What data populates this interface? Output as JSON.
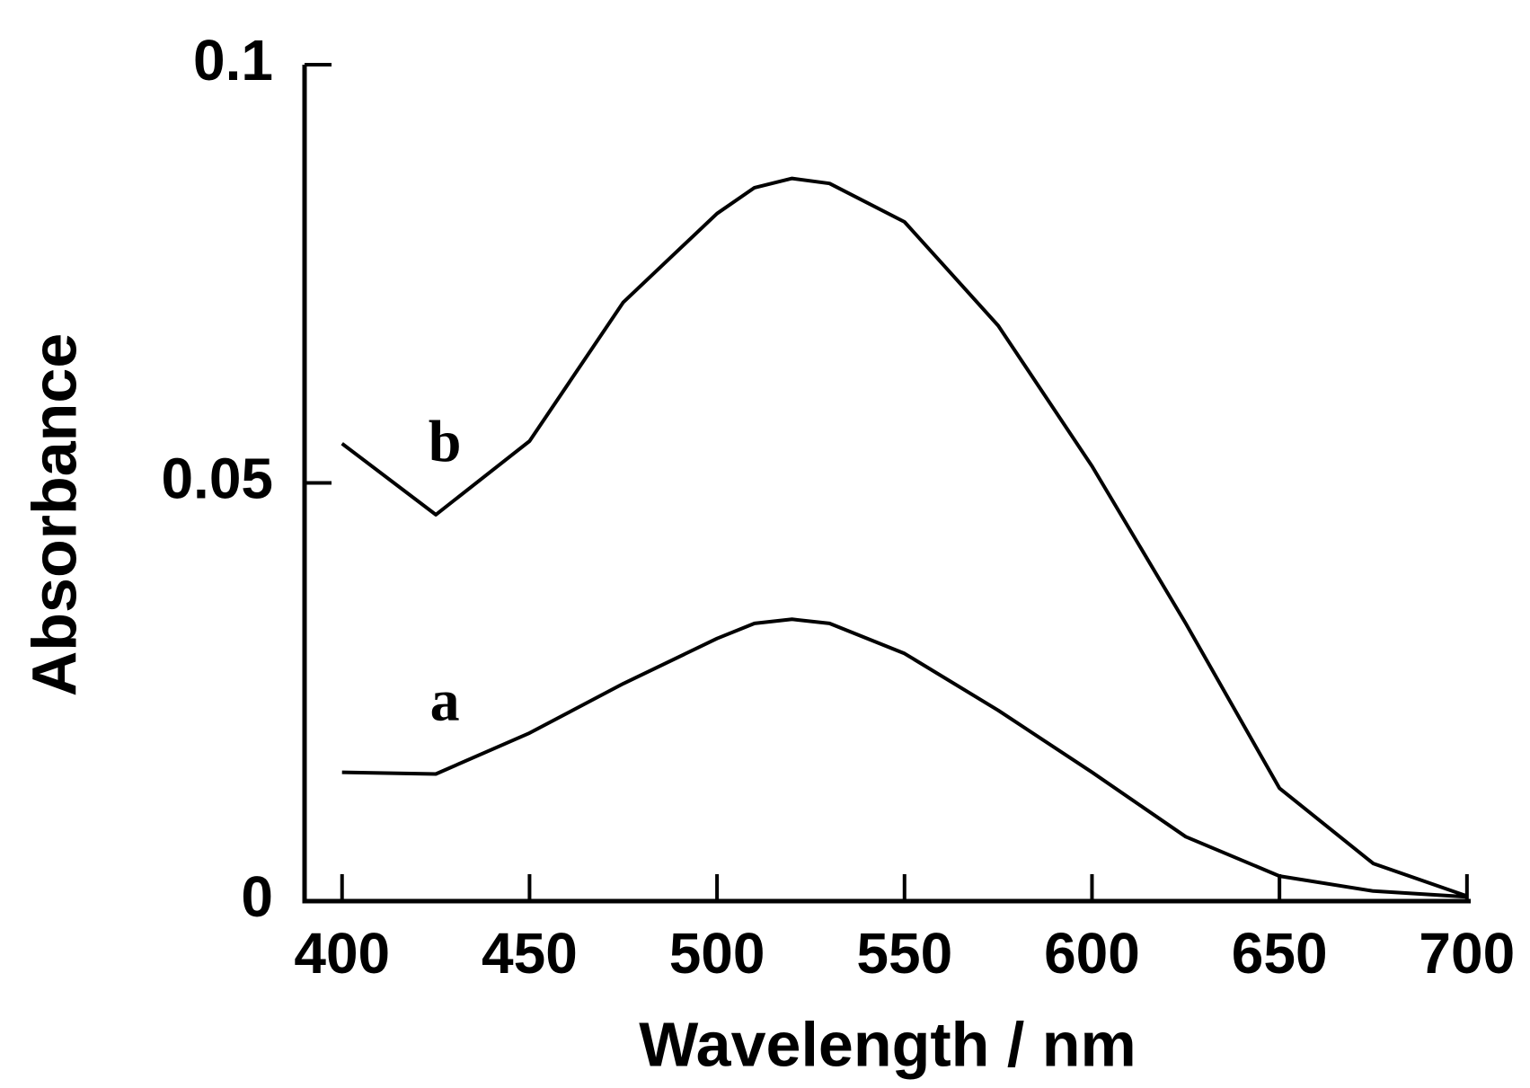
{
  "chart_data": {
    "type": "line",
    "x_label": "Wavelength / nm",
    "y_label": "Absorbance",
    "x": [
      400,
      425,
      450,
      475,
      500,
      510,
      520,
      530,
      550,
      575,
      600,
      625,
      650,
      675,
      700
    ],
    "series": [
      {
        "name": "a",
        "color": "#000000",
        "values": [
          0.0154,
          0.0152,
          0.0201,
          0.026,
          0.0314,
          0.0332,
          0.0337,
          0.0332,
          0.0296,
          0.0228,
          0.0154,
          0.0077,
          0.003,
          0.0012,
          0.0005
        ]
      },
      {
        "name": "b",
        "color": "#000000",
        "values": [
          0.0547,
          0.0462,
          0.055,
          0.0716,
          0.0822,
          0.0853,
          0.0864,
          0.0858,
          0.0812,
          0.0688,
          0.052,
          0.0332,
          0.0135,
          0.0045,
          0.0006
        ]
      }
    ],
    "xlim": [
      390,
      701
    ],
    "ylim": [
      0,
      0.1
    ],
    "xticks": [
      400,
      450,
      500,
      550,
      600,
      650,
      700
    ],
    "yticks": [
      0,
      0.05,
      0.1
    ]
  }
}
